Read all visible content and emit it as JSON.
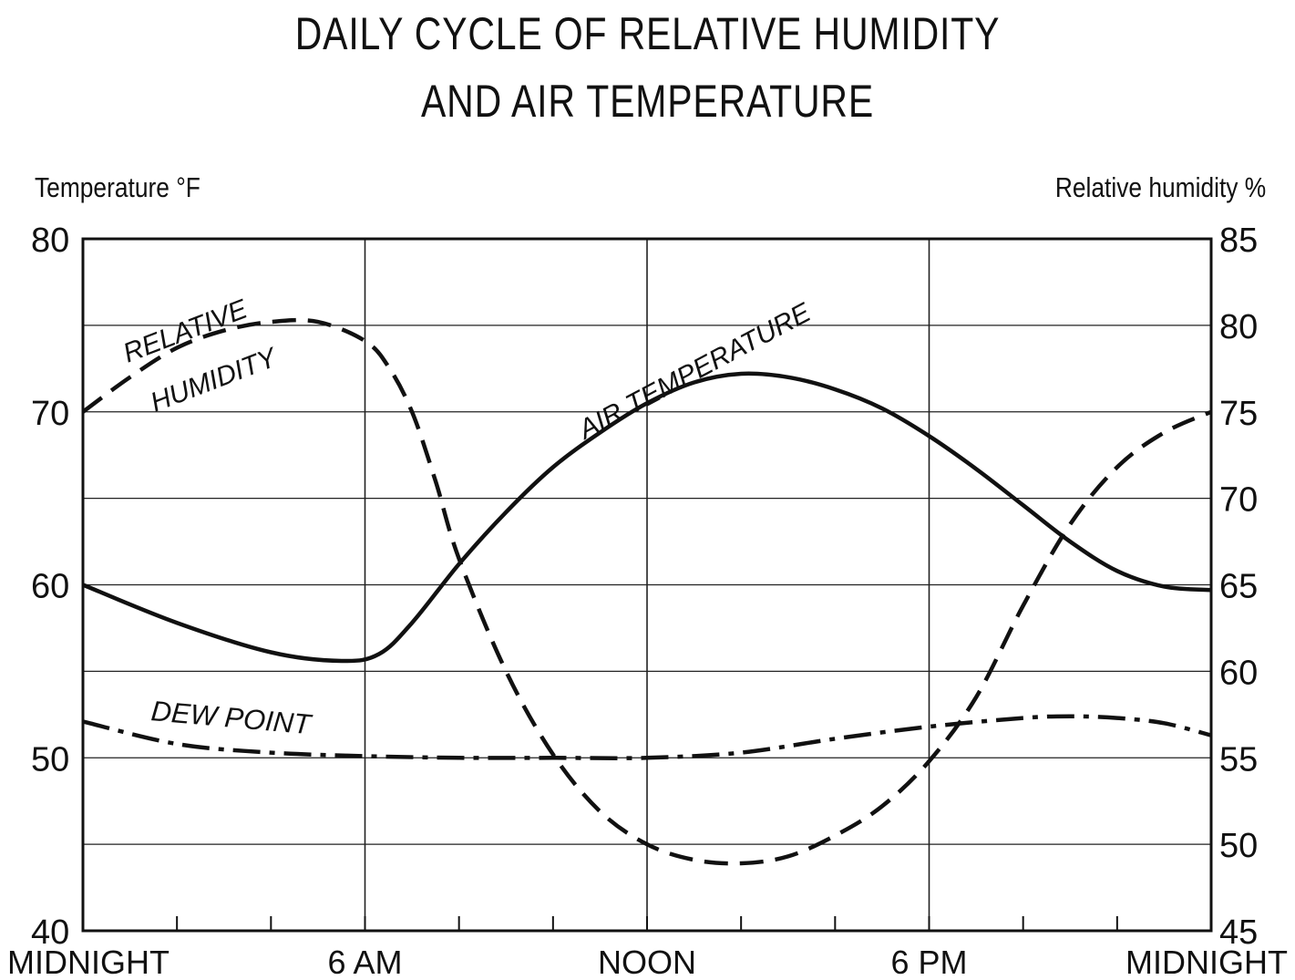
{
  "chart_data": {
    "type": "line",
    "title_line1": "DAILY CYCLE OF RELATIVE HUMIDITY",
    "title_line2": "AND AIR TEMPERATURE",
    "ylabel_left": "Temperature °F",
    "ylabel_right": "Relative humidity %",
    "x_ticks": [
      {
        "hour": 0,
        "label": "MIDNIGHT"
      },
      {
        "hour": 6,
        "label": "6 AM"
      },
      {
        "hour": 12,
        "label": "NOON"
      },
      {
        "hour": 18,
        "label": "6 PM"
      },
      {
        "hour": 24,
        "label": "MIDNIGHT"
      }
    ],
    "xlim": [
      0,
      24
    ],
    "ylim_left": [
      40,
      80
    ],
    "ylim_right": [
      45,
      85
    ],
    "left_ticks": [
      40,
      50,
      60,
      70,
      80
    ],
    "right_ticks": [
      45,
      50,
      55,
      60,
      65,
      70,
      75,
      80,
      85
    ],
    "grid": true,
    "series": [
      {
        "name": "AIR TEMPERATURE",
        "axis": "left",
        "style": "solid",
        "x": [
          0,
          2,
          4,
          5.5,
          6.3,
          7,
          8,
          9,
          10,
          11,
          12,
          13,
          14,
          15,
          16,
          17,
          18,
          19,
          20,
          21,
          22,
          23,
          24
        ],
        "y": [
          60,
          57.8,
          56.1,
          55.6,
          56,
          57.8,
          61.2,
          64.2,
          66.8,
          68.8,
          70.5,
          71.7,
          72.2,
          72,
          71.3,
          70.2,
          68.6,
          66.7,
          64.6,
          62.5,
          60.8,
          59.9,
          59.7
        ]
      },
      {
        "name": "RELATIVE HUMIDITY",
        "axis": "right",
        "style": "dashed",
        "x": [
          0,
          1,
          2,
          3,
          4,
          5,
          6,
          6.5,
          7,
          7.5,
          8,
          9,
          10,
          11,
          12,
          13,
          14,
          15,
          16,
          17,
          18,
          19,
          20,
          21,
          22,
          23,
          24
        ],
        "y": [
          75,
          77,
          78.7,
          79.7,
          80.2,
          80.2,
          79.1,
          77.6,
          75,
          71,
          66.5,
          60,
          55.2,
          51.9,
          50,
          49.1,
          48.9,
          49.3,
          50.5,
          52.2,
          54.8,
          58.5,
          63.8,
          68.5,
          71.8,
          73.8,
          75
        ]
      },
      {
        "name": "DEW POINT",
        "axis": "left",
        "style": "dash-dot",
        "x": [
          0,
          2,
          4,
          6,
          8,
          10,
          12,
          14,
          16,
          18,
          20,
          21,
          22,
          23,
          24
        ],
        "y": [
          52.1,
          50.8,
          50.3,
          50.1,
          50,
          50,
          50,
          50.3,
          51.1,
          51.8,
          52.3,
          52.4,
          52.3,
          52,
          51.3
        ]
      }
    ],
    "annotations": {
      "relative_humidity_1": "RELATIVE",
      "relative_humidity_2": "HUMIDITY",
      "air_temperature": "AIR TEMPERATURE",
      "dew_point": "DEW POINT"
    }
  }
}
